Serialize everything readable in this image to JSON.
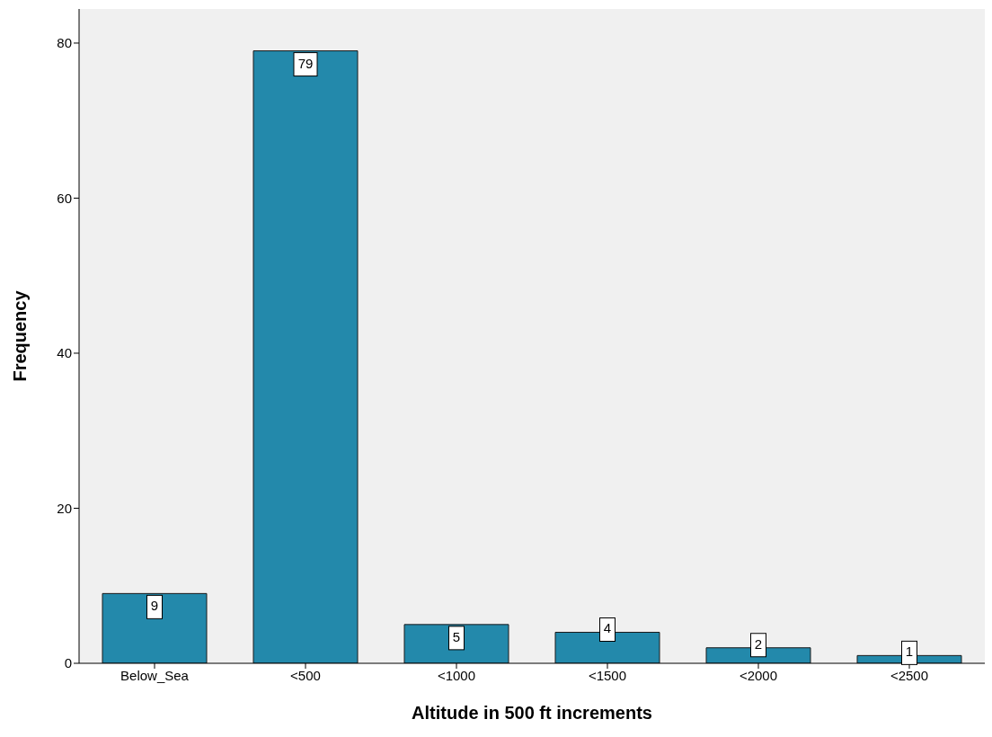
{
  "chart_data": {
    "type": "bar",
    "xlabel": "Altitude in 500 ft increments",
    "ylabel": "Frequency",
    "categories": [
      "Below_Sea",
      "<500",
      "<1000",
      "<1500",
      "<2000",
      "<2500"
    ],
    "values": [
      9,
      79,
      5,
      4,
      2,
      1
    ],
    "color": "#2389ab",
    "ylim": [
      0,
      84.4
    ],
    "yticks": [
      0,
      20,
      40,
      60,
      80
    ],
    "data_labels": true,
    "grid": false
  }
}
